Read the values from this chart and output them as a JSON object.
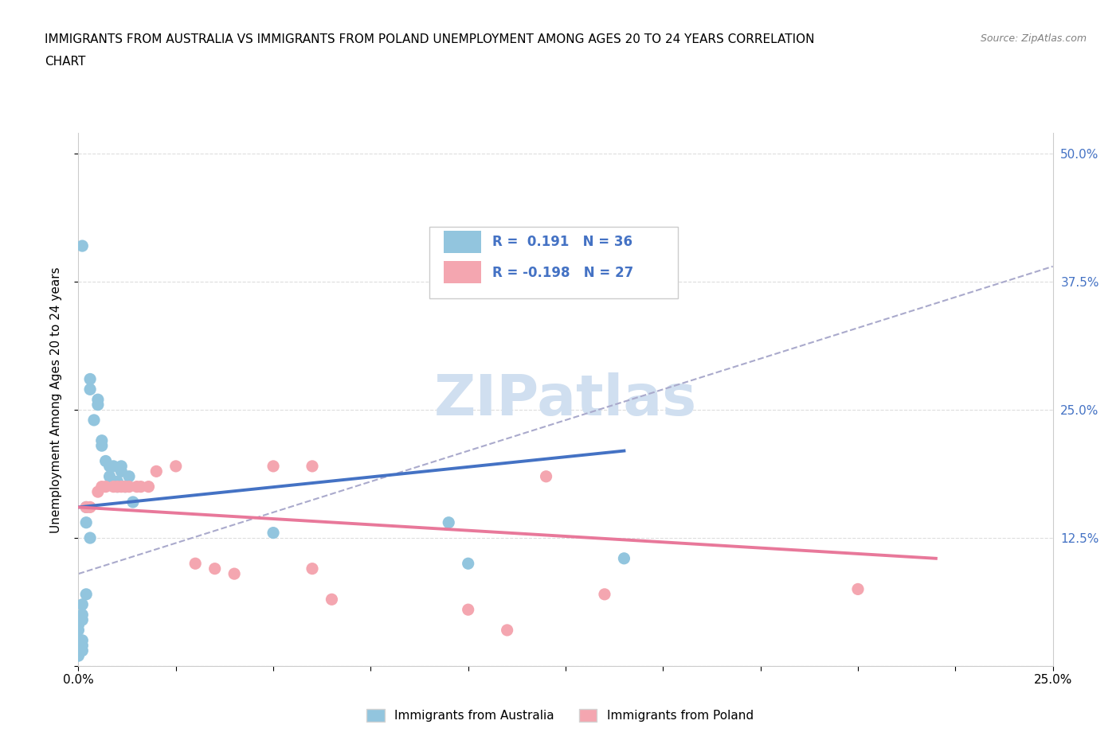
{
  "title_line1": "IMMIGRANTS FROM AUSTRALIA VS IMMIGRANTS FROM POLAND UNEMPLOYMENT AMONG AGES 20 TO 24 YEARS CORRELATION",
  "title_line2": "CHART",
  "source": "Source: ZipAtlas.com",
  "ylabel": "Unemployment Among Ages 20 to 24 years",
  "xlim": [
    0.0,
    0.25
  ],
  "ylim": [
    0.0,
    0.52
  ],
  "xticks": [
    0.0,
    0.025,
    0.05,
    0.075,
    0.1,
    0.125,
    0.15,
    0.175,
    0.2,
    0.225,
    0.25
  ],
  "xtick_labels": [
    "0.0%",
    "",
    "",
    "",
    "",
    "",
    "",
    "",
    "",
    "",
    "25.0%"
  ],
  "ytick_positions": [
    0.0,
    0.125,
    0.25,
    0.375,
    0.5
  ],
  "ytick_labels": [
    "",
    "12.5%",
    "25.0%",
    "37.5%",
    "50.0%"
  ],
  "australia_color": "#92C5DE",
  "poland_color": "#F4A6B0",
  "australia_line_color": "#4472C4",
  "poland_line_color": "#E8789A",
  "dashed_line_color": "#AAAACC",
  "watermark_color": "#D0DFF0",
  "legend_R_australia": "0.191",
  "legend_N_australia": "36",
  "legend_R_poland": "-0.198",
  "legend_N_poland": "27",
  "australia_scatter": [
    [
      0.001,
      0.41
    ],
    [
      0.003,
      0.27
    ],
    [
      0.003,
      0.28
    ],
    [
      0.004,
      0.24
    ],
    [
      0.005,
      0.26
    ],
    [
      0.005,
      0.255
    ],
    [
      0.006,
      0.22
    ],
    [
      0.006,
      0.215
    ],
    [
      0.007,
      0.2
    ],
    [
      0.008,
      0.195
    ],
    [
      0.008,
      0.185
    ],
    [
      0.009,
      0.195
    ],
    [
      0.01,
      0.175
    ],
    [
      0.01,
      0.18
    ],
    [
      0.011,
      0.19
    ],
    [
      0.011,
      0.195
    ],
    [
      0.012,
      0.175
    ],
    [
      0.013,
      0.185
    ],
    [
      0.014,
      0.16
    ],
    [
      0.002,
      0.155
    ],
    [
      0.002,
      0.14
    ],
    [
      0.003,
      0.125
    ],
    [
      0.002,
      0.07
    ],
    [
      0.001,
      0.06
    ],
    [
      0.001,
      0.05
    ],
    [
      0.001,
      0.045
    ],
    [
      0.0,
      0.04
    ],
    [
      0.0,
      0.035
    ],
    [
      0.001,
      0.025
    ],
    [
      0.001,
      0.02
    ],
    [
      0.001,
      0.015
    ],
    [
      0.0,
      0.01
    ],
    [
      0.05,
      0.13
    ],
    [
      0.095,
      0.14
    ],
    [
      0.1,
      0.1
    ],
    [
      0.14,
      0.105
    ]
  ],
  "poland_scatter": [
    [
      0.005,
      0.17
    ],
    [
      0.006,
      0.175
    ],
    [
      0.007,
      0.175
    ],
    [
      0.009,
      0.175
    ],
    [
      0.01,
      0.175
    ],
    [
      0.011,
      0.175
    ],
    [
      0.012,
      0.175
    ],
    [
      0.013,
      0.175
    ],
    [
      0.015,
      0.175
    ],
    [
      0.016,
      0.175
    ],
    [
      0.018,
      0.175
    ],
    [
      0.02,
      0.19
    ],
    [
      0.025,
      0.195
    ],
    [
      0.002,
      0.155
    ],
    [
      0.003,
      0.155
    ],
    [
      0.05,
      0.195
    ],
    [
      0.06,
      0.195
    ],
    [
      0.03,
      0.1
    ],
    [
      0.035,
      0.095
    ],
    [
      0.04,
      0.09
    ],
    [
      0.06,
      0.095
    ],
    [
      0.065,
      0.065
    ],
    [
      0.1,
      0.055
    ],
    [
      0.135,
      0.07
    ],
    [
      0.12,
      0.185
    ],
    [
      0.2,
      0.075
    ],
    [
      0.11,
      0.035
    ]
  ],
  "australia_trend_x": [
    0.0,
    0.14
  ],
  "australia_trend_y": [
    0.155,
    0.21
  ],
  "poland_trend_x": [
    0.0,
    0.22
  ],
  "poland_trend_y": [
    0.155,
    0.105
  ],
  "dashed_trend_x": [
    0.0,
    0.25
  ],
  "dashed_trend_y": [
    0.09,
    0.39
  ],
  "grid_color": "#DDDDDD",
  "background_color": "#FFFFFF"
}
